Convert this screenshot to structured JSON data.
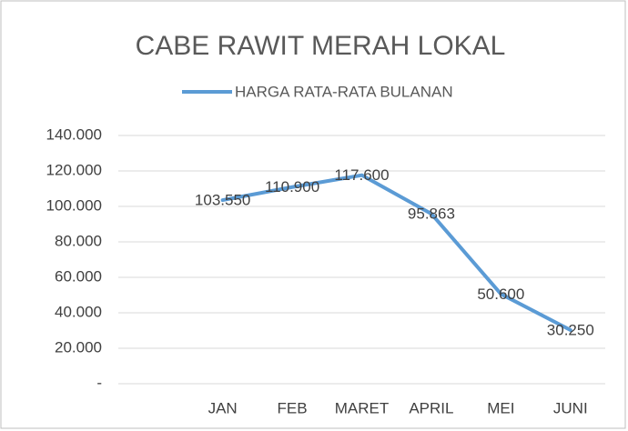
{
  "chart_data": {
    "type": "line",
    "title": "CABE RAWIT MERAH LOKAL",
    "categories": [
      null,
      "JAN",
      "FEB",
      "MARET",
      "APRIL",
      "MEI",
      "JUNI"
    ],
    "series": [
      {
        "name": "HARGA RATA-RATA BULANAN",
        "color": "#5b9bd5",
        "values": [
          null,
          103550,
          110900,
          117600,
          95863,
          50600,
          30250
        ],
        "value_labels": [
          null,
          "103.550",
          "110.900",
          "117.600",
          "95.863",
          "50.600",
          "30.250"
        ]
      }
    ],
    "ylim": [
      0,
      140000
    ],
    "yticks": [
      {
        "value": 0,
        "label": "-"
      },
      {
        "value": 20000,
        "label": "20.000"
      },
      {
        "value": 40000,
        "label": "40.000"
      },
      {
        "value": 60000,
        "label": "60.000"
      },
      {
        "value": 80000,
        "label": "80.000"
      },
      {
        "value": 100000,
        "label": "100.000"
      },
      {
        "value": 120000,
        "label": "120.000"
      },
      {
        "value": 140000,
        "label": "140.000"
      }
    ],
    "grid": true,
    "legend": "top"
  }
}
